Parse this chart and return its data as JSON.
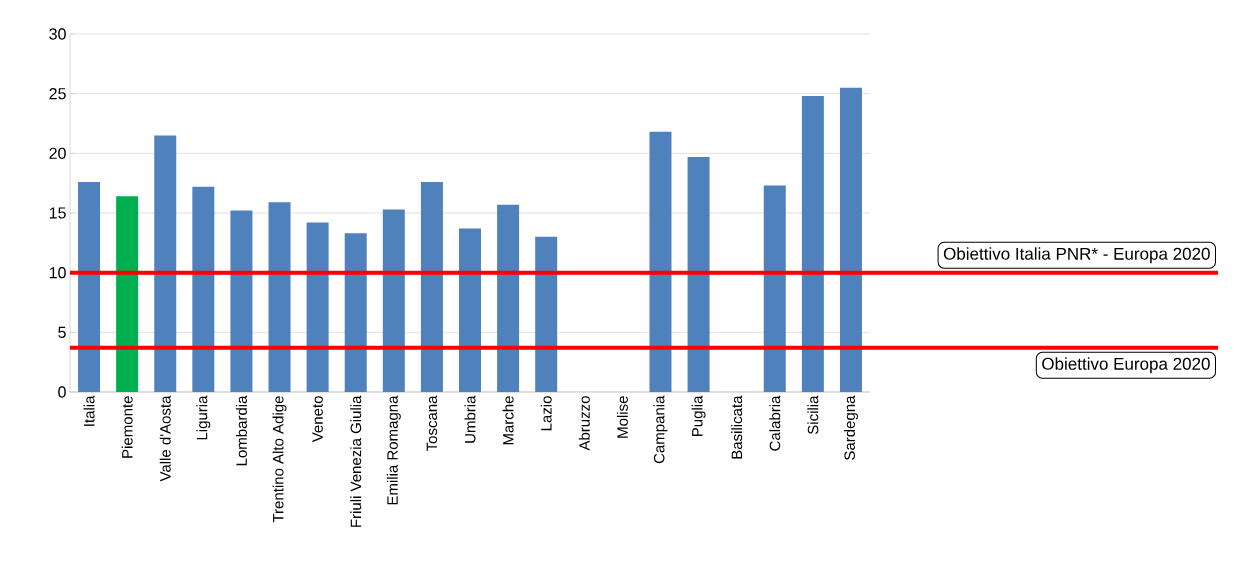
{
  "chart_data": {
    "type": "bar",
    "categories": [
      "Italia",
      "Piemonte",
      "Valle d'Aosta",
      "Liguria",
      "Lombardia",
      "Trentino Alto Adige",
      "Veneto",
      "Friuli Venezia Giulia",
      "Emilia Romagna",
      "Toscana",
      "Umbria",
      "Marche",
      "Lazio",
      "Abruzzo",
      "Molise",
      "Campania",
      "Puglia",
      "Basilicata",
      "Calabria",
      "Sicilia",
      "Sardegna"
    ],
    "values": [
      17.6,
      16.4,
      21.5,
      17.2,
      15.2,
      15.9,
      14.2,
      13.3,
      15.3,
      17.6,
      13.7,
      15.7,
      13.0,
      null,
      null,
      21.8,
      19.7,
      null,
      17.3,
      24.8,
      25.5
    ],
    "colors": [
      "#4f81bd",
      "#00b050",
      "#4f81bd",
      "#4f81bd",
      "#4f81bd",
      "#4f81bd",
      "#4f81bd",
      "#4f81bd",
      "#4f81bd",
      "#4f81bd",
      "#4f81bd",
      "#4f81bd",
      "#4f81bd",
      "#4f81bd",
      "#4f81bd",
      "#4f81bd",
      "#4f81bd",
      "#4f81bd",
      "#4f81bd",
      "#4f81bd",
      "#4f81bd"
    ],
    "ylim": [
      0,
      30
    ],
    "yticks": [
      0,
      5,
      10,
      15,
      20,
      25,
      30
    ],
    "grid": "y",
    "ref_lines": [
      {
        "axis": "y",
        "value": 10,
        "label": "Obiettivo Italia PNR* - Europa 2020",
        "color": "#ff0000"
      },
      {
        "axis": "y",
        "value": 3.7,
        "label": "Obiettivo Europa 2020",
        "color": "#ff0000"
      }
    ]
  }
}
